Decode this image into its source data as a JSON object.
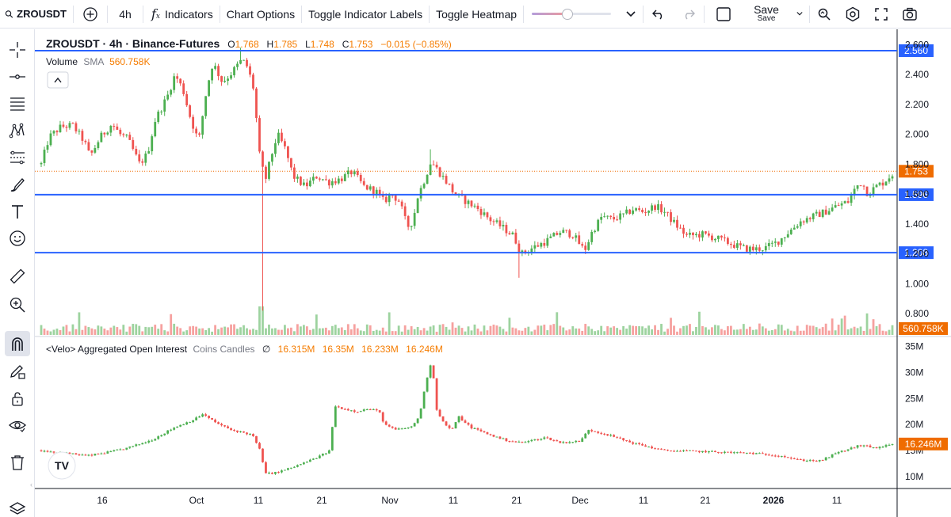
{
  "toolbar": {
    "symbol": "ZROUSDT",
    "interval": "4h",
    "indicators_label": "Indicators",
    "chart_options_label": "Chart Options",
    "toggle_indicator_labels": "Toggle Indicator Labels",
    "toggle_heatmap": "Toggle Heatmap",
    "save_label": "Save",
    "save_sub": "Save"
  },
  "legend": {
    "title": "ZROUSDT · 4h · Binance-Futures",
    "o_label": "O",
    "o_value": "1.768",
    "h_label": "H",
    "h_value": "1.785",
    "l_label": "L",
    "l_value": "1.748",
    "c_label": "C",
    "c_value": "1.753",
    "change": "−0.015 (−0.85%)",
    "volume_label": "Volume",
    "sma_label": "SMA",
    "sma_value": "560.758K",
    "oi_label": "<Velo> Aggregated Open Interest",
    "oi_sub": "Coins Candles",
    "oi_symbol": "∅",
    "oi_o": "16.315M",
    "oi_h": "16.35M",
    "oi_l": "16.233M",
    "oi_c": "16.246M"
  },
  "colors": {
    "up": "#26a69a",
    "up_candle": "#4caf50",
    "down": "#ef5350",
    "hline": "#2962ff",
    "orange": "#f57c00",
    "current_line": "#ef6c00"
  },
  "icons": [
    "search-icon",
    "add-symbol-icon",
    "function-icon",
    "chevron-down-icon",
    "undo-icon",
    "redo-icon",
    "fullscreen-icon",
    "camera-icon",
    "settings-icon",
    "crosshair-icon",
    "trend-line-icon",
    "fib-icon",
    "pattern-icon",
    "forecast-icon",
    "brush-icon",
    "text-icon",
    "emoji-icon",
    "ruler-icon",
    "zoom-icon",
    "magnet-icon",
    "pencil-lock-icon",
    "lock-icon",
    "eye-icon",
    "trash-icon",
    "layers-icon",
    "collapse-icon"
  ],
  "chart_data": [
    {
      "type": "candlestick",
      "title": "ZROUSDT · 4h · Binance-Futures",
      "ylim": [
        0.7,
        2.65
      ],
      "y_ticks": [
        "2.600",
        "2.400",
        "2.200",
        "2.000",
        "1.800",
        "1.600",
        "1.400",
        "1.200",
        "1.000",
        "0.800"
      ],
      "y_tick_values": [
        2.6,
        2.4,
        2.2,
        2.0,
        1.8,
        1.6,
        1.4,
        1.2,
        1.0,
        0.8
      ],
      "x_ticks": [
        "16",
        "Oct",
        "11",
        "21",
        "Nov",
        "11",
        "21",
        "Dec",
        "11",
        "21",
        "2026",
        "11"
      ],
      "horizontal_lines": [
        {
          "value": 2.56,
          "label": "2.560"
        },
        {
          "value": 1.596,
          "label": "1.596"
        },
        {
          "value": 1.208,
          "label": "1.208"
        }
      ],
      "current_price": {
        "value": 1.753,
        "label": "1.753"
      },
      "close_path": [
        [
          0,
          1.8
        ],
        [
          10,
          1.98
        ],
        [
          25,
          2.05
        ],
        [
          40,
          2.06
        ],
        [
          55,
          1.95
        ],
        [
          62,
          1.85
        ],
        [
          75,
          1.98
        ],
        [
          90,
          2.07
        ],
        [
          100,
          2.0
        ],
        [
          110,
          1.97
        ],
        [
          125,
          1.8
        ],
        [
          135,
          1.87
        ],
        [
          145,
          2.1
        ],
        [
          160,
          2.25
        ],
        [
          170,
          2.4
        ],
        [
          180,
          2.3
        ],
        [
          190,
          2.1
        ],
        [
          200,
          1.95
        ],
        [
          210,
          2.3
        ],
        [
          218,
          2.48
        ],
        [
          230,
          2.35
        ],
        [
          240,
          2.4
        ],
        [
          255,
          2.5
        ],
        [
          262,
          2.45
        ],
        [
          270,
          2.3
        ],
        [
          278,
          1.82
        ],
        [
          285,
          1.7
        ],
        [
          292,
          1.85
        ],
        [
          300,
          2.0
        ],
        [
          310,
          1.9
        ],
        [
          320,
          1.72
        ],
        [
          335,
          1.65
        ],
        [
          350,
          1.72
        ],
        [
          365,
          1.68
        ],
        [
          380,
          1.7
        ],
        [
          395,
          1.75
        ],
        [
          410,
          1.65
        ],
        [
          425,
          1.62
        ],
        [
          435,
          1.55
        ],
        [
          445,
          1.6
        ],
        [
          455,
          1.55
        ],
        [
          465,
          1.38
        ],
        [
          472,
          1.42
        ],
        [
          478,
          1.58
        ],
        [
          487,
          1.7
        ],
        [
          495,
          1.82
        ],
        [
          505,
          1.75
        ],
        [
          515,
          1.68
        ],
        [
          525,
          1.6
        ],
        [
          540,
          1.55
        ],
        [
          555,
          1.5
        ],
        [
          570,
          1.43
        ],
        [
          585,
          1.38
        ],
        [
          600,
          1.32
        ],
        [
          610,
          1.2
        ],
        [
          620,
          1.23
        ],
        [
          640,
          1.28
        ],
        [
          660,
          1.35
        ],
        [
          675,
          1.33
        ],
        [
          690,
          1.22
        ],
        [
          700,
          1.35
        ],
        [
          712,
          1.45
        ],
        [
          725,
          1.43
        ],
        [
          740,
          1.46
        ],
        [
          752,
          1.5
        ],
        [
          765,
          1.48
        ],
        [
          780,
          1.52
        ],
        [
          792,
          1.48
        ],
        [
          805,
          1.4
        ],
        [
          820,
          1.32
        ],
        [
          840,
          1.33
        ],
        [
          860,
          1.3
        ],
        [
          875,
          1.27
        ],
        [
          890,
          1.24
        ],
        [
          905,
          1.23
        ],
        [
          920,
          1.24
        ],
        [
          935,
          1.28
        ],
        [
          950,
          1.35
        ],
        [
          965,
          1.42
        ],
        [
          980,
          1.45
        ],
        [
          995,
          1.48
        ],
        [
          1010,
          1.52
        ],
        [
          1025,
          1.55
        ],
        [
          1035,
          1.65
        ],
        [
          1042,
          1.68
        ],
        [
          1050,
          1.6
        ],
        [
          1060,
          1.65
        ],
        [
          1070,
          1.68
        ],
        [
          1078,
          1.72
        ],
        [
          1085,
          1.753
        ]
      ],
      "wick_events": [
        [
          280,
          0.82
        ],
        [
          607,
          1.04
        ],
        [
          493,
          1.9
        ],
        [
          255,
          2.58
        ]
      ]
    },
    {
      "type": "bar",
      "title": "Volume SMA",
      "sma": "560.758K",
      "label": "560.758K"
    },
    {
      "type": "candlestick",
      "title": "<Velo> Aggregated Open Interest Coins Candles",
      "ylim": [
        8,
        36
      ],
      "y_ticks": [
        "35M",
        "30M",
        "25M",
        "20M",
        "15M",
        "10M"
      ],
      "y_tick_values": [
        35,
        30,
        25,
        20,
        15,
        10
      ],
      "current_value": {
        "value": 16.246,
        "label": "16.246M"
      },
      "close_path": [
        [
          0,
          15.0
        ],
        [
          30,
          14.5
        ],
        [
          60,
          14.0
        ],
        [
          90,
          14.8
        ],
        [
          110,
          15.5
        ],
        [
          140,
          17.0
        ],
        [
          170,
          19.5
        ],
        [
          195,
          21.0
        ],
        [
          205,
          22.0
        ],
        [
          220,
          20.5
        ],
        [
          240,
          19.0
        ],
        [
          255,
          18.5
        ],
        [
          268,
          18.0
        ],
        [
          278,
          15.0
        ],
        [
          285,
          10.5
        ],
        [
          300,
          10.8
        ],
        [
          320,
          11.8
        ],
        [
          340,
          13.0
        ],
        [
          355,
          14.0
        ],
        [
          367,
          15.0
        ],
        [
          372,
          23.5
        ],
        [
          385,
          23.0
        ],
        [
          400,
          22.5
        ],
        [
          415,
          23.0
        ],
        [
          430,
          22.5
        ],
        [
          435,
          20.0
        ],
        [
          450,
          19.0
        ],
        [
          470,
          19.5
        ],
        [
          480,
          21.5
        ],
        [
          490,
          29.0
        ],
        [
          496,
          32.5
        ],
        [
          502,
          23.0
        ],
        [
          512,
          20.0
        ],
        [
          522,
          19.0
        ],
        [
          530,
          21.5
        ],
        [
          545,
          19.5
        ],
        [
          570,
          18.0
        ],
        [
          590,
          17.0
        ],
        [
          610,
          16.5
        ],
        [
          640,
          17.5
        ],
        [
          660,
          16.5
        ],
        [
          685,
          16.8
        ],
        [
          695,
          19.0
        ],
        [
          720,
          18.0
        ],
        [
          750,
          16.5
        ],
        [
          790,
          15.0
        ],
        [
          840,
          14.8
        ],
        [
          900,
          14.5
        ],
        [
          940,
          14.0
        ],
        [
          960,
          13.2
        ],
        [
          990,
          13.0
        ],
        [
          1010,
          14.5
        ],
        [
          1040,
          16.0
        ],
        [
          1060,
          15.5
        ],
        [
          1085,
          16.246
        ]
      ]
    }
  ]
}
